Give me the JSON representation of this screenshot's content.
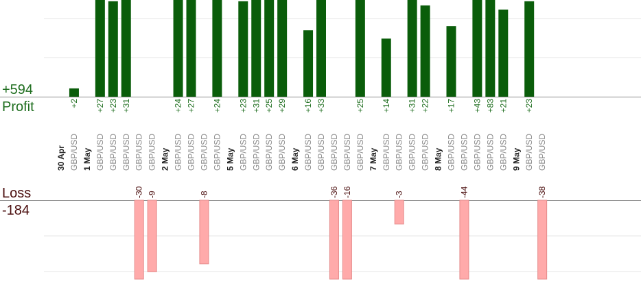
{
  "summary": {
    "profit_total": "+594",
    "profit_label": "Profit",
    "loss_label": "Loss",
    "loss_total": "-184"
  },
  "colors": {
    "profit_bar": "#0a5d0a",
    "profit_text": "#1f6e1f",
    "loss_bar": "#ffaaaa",
    "loss_bar_edge": "#e58a8a",
    "loss_text": "#4a0d0d",
    "label_gray": "#888888",
    "date_text": "#222222",
    "grid": "#e6e6e6"
  },
  "chart_data": {
    "type": "bar",
    "description_free": true,
    "profit_axis_max": 30,
    "loss_axis_max": 20,
    "rows": [
      {
        "label": "30 Apr",
        "kind": "date"
      },
      {
        "label": "GBP/USD",
        "kind": "trade",
        "profit": 2,
        "profit_label": "+2"
      },
      {
        "label": "1 May",
        "kind": "date"
      },
      {
        "label": "GBP/USD",
        "kind": "trade",
        "profit": 27,
        "profit_label": "+27"
      },
      {
        "label": "GBP/USD",
        "kind": "trade",
        "profit": 23,
        "profit_label": "+23"
      },
      {
        "label": "GBP/USD",
        "kind": "trade",
        "profit": 31,
        "profit_label": "+31"
      },
      {
        "label": "GBP/USD",
        "kind": "trade",
        "loss": -30,
        "loss_label": "-30"
      },
      {
        "label": "GBP/USD",
        "kind": "trade",
        "loss": -9,
        "loss_label": "-9"
      },
      {
        "label": "2 May",
        "kind": "date"
      },
      {
        "label": "GBP/USD",
        "kind": "trade",
        "profit": 24,
        "profit_label": "+24"
      },
      {
        "label": "GBP/USD",
        "kind": "trade",
        "profit": 27,
        "profit_label": "+27"
      },
      {
        "label": "GBP/USD",
        "kind": "trade",
        "loss": -8,
        "loss_label": "-8"
      },
      {
        "label": "GBP/USD",
        "kind": "trade",
        "profit": 24,
        "profit_label": "+24"
      },
      {
        "label": "5 May",
        "kind": "date"
      },
      {
        "label": "GBP/USD",
        "kind": "trade",
        "profit": 23,
        "profit_label": "+23"
      },
      {
        "label": "GBP/USD",
        "kind": "trade",
        "profit": 31,
        "profit_label": "+31"
      },
      {
        "label": "GBP/USD",
        "kind": "trade",
        "profit": 25,
        "profit_label": "+25"
      },
      {
        "label": "GBP/USD",
        "kind": "trade",
        "profit": 29,
        "profit_label": "+29"
      },
      {
        "label": "6 May",
        "kind": "date"
      },
      {
        "label": "GBP/USD",
        "kind": "trade",
        "profit": 16,
        "profit_label": "+16"
      },
      {
        "label": "GBP/USD",
        "kind": "trade",
        "profit": 33,
        "profit_label": "+33"
      },
      {
        "label": "GBP/USD",
        "kind": "trade",
        "loss": -36,
        "loss_label": "-36"
      },
      {
        "label": "GBP/USD",
        "kind": "trade",
        "loss": -16,
        "loss_label": "-16"
      },
      {
        "label": "GBP/USD",
        "kind": "trade",
        "profit": 25,
        "profit_label": "+25"
      },
      {
        "label": "7 May",
        "kind": "date"
      },
      {
        "label": "GBP/USD",
        "kind": "trade",
        "profit": 14,
        "profit_label": "+14"
      },
      {
        "label": "GBP/USD",
        "kind": "trade",
        "loss": -3,
        "loss_label": "-3"
      },
      {
        "label": "GBP/USD",
        "kind": "trade",
        "profit": 31,
        "profit_label": "+31"
      },
      {
        "label": "GBP/USD",
        "kind": "trade",
        "profit": 22,
        "profit_label": "+22"
      },
      {
        "label": "8 May",
        "kind": "date"
      },
      {
        "label": "GBP/USD",
        "kind": "trade",
        "profit": 17,
        "profit_label": "+17"
      },
      {
        "label": "GBP/USD",
        "kind": "trade",
        "loss": -44,
        "loss_label": "-44"
      },
      {
        "label": "GBP/USD",
        "kind": "trade",
        "profit": 43,
        "profit_label": "+43"
      },
      {
        "label": "GBP/USD",
        "kind": "trade",
        "profit": 83,
        "profit_label": "+83"
      },
      {
        "label": "GBP/USD",
        "kind": "trade",
        "profit": 21,
        "profit_label": "+21"
      },
      {
        "label": "9 May",
        "kind": "date"
      },
      {
        "label": "GBP/USD",
        "kind": "trade",
        "profit": 23,
        "profit_label": "+23"
      },
      {
        "label": "GBP/USD",
        "kind": "trade",
        "loss": -38,
        "loss_label": "-38"
      }
    ]
  }
}
